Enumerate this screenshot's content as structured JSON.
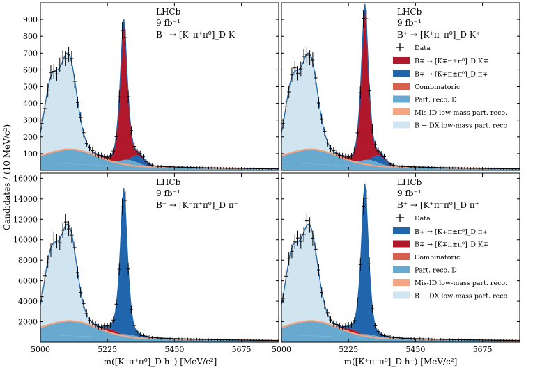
{
  "figure": {
    "ylabel": "Candidates / (10 MeV/c²)",
    "xlabel_left": "m([K⁻π⁺π⁰]_D h⁻) [MeV/c²]",
    "xlabel_right": "m([K⁺π⁻π⁰]_D h⁺) [MeV/c²]"
  },
  "colors": {
    "signal_dk": "#b2182b",
    "signal_dpi": "#2166ac",
    "combinatoric": "#d6604d",
    "part_reco_d": "#67a9cf",
    "misid": "#f4a582",
    "bdx": "#d1e5f0",
    "fit_line": "#2166ac"
  },
  "chart_data": [
    {
      "type": "area",
      "panel": "top-left",
      "experiment": "LHCb",
      "luminosity": "9 fb⁻¹",
      "decay": "B⁻ → [K⁻π⁺π⁰]_D K⁻",
      "xlim": [
        5000,
        5800
      ],
      "ylim": [
        0,
        1000
      ],
      "yticks": [
        100,
        200,
        300,
        400,
        500,
        600,
        700,
        800,
        900
      ],
      "xticks": [
        5000,
        5225,
        5450,
        5675
      ],
      "signal_peak": 840,
      "legend": []
    },
    {
      "type": "area",
      "panel": "top-right",
      "experiment": "LHCb",
      "luminosity": "9 fb⁻¹",
      "decay": "B⁺ → [K⁺π⁻π⁰]_D K⁺",
      "xlim": [
        5000,
        5800
      ],
      "ylim": [
        0,
        1000
      ],
      "yticks": [
        100,
        200,
        300,
        400,
        500,
        600,
        700,
        800,
        900
      ],
      "xticks": [
        5000,
        5225,
        5450,
        5675
      ],
      "signal_peak": 930,
      "legend": [
        {
          "label": "Data",
          "kind": "data"
        },
        {
          "label": "B∓ → [K∓π±π⁰]_D K∓",
          "color": "#b2182b"
        },
        {
          "label": "B∓ → [K∓π±π⁰]_D π∓",
          "color": "#2166ac"
        },
        {
          "label": "Combinatoric",
          "color": "#d6604d"
        },
        {
          "label": "Part. reco. D",
          "color": "#67a9cf"
        },
        {
          "label": "Mis-ID low-mass part. reco.",
          "color": "#f4a582"
        },
        {
          "label": "B → DX low-mass part. reco",
          "color": "#d1e5f0"
        }
      ]
    },
    {
      "type": "area",
      "panel": "bottom-left",
      "experiment": "LHCb",
      "luminosity": "9 fb⁻¹",
      "decay": "B⁻ → [K⁻π⁺π⁰]_D π⁻",
      "xlim": [
        5000,
        5800
      ],
      "ylim": [
        0,
        16500
      ],
      "yticks": [
        2000,
        4000,
        6000,
        8000,
        10000,
        12000,
        14000,
        16000
      ],
      "xticks": [
        5000,
        5225,
        5450,
        5675
      ],
      "signal_peak": 14200,
      "legend": []
    },
    {
      "type": "area",
      "panel": "bottom-right",
      "experiment": "LHCb",
      "luminosity": "9 fb⁻¹",
      "decay": "B⁺ → [K⁺π⁻π⁰]_D π⁺",
      "xlim": [
        5000,
        5800
      ],
      "ylim": [
        0,
        16500
      ],
      "yticks": [
        2000,
        4000,
        6000,
        8000,
        10000,
        12000,
        14000,
        16000
      ],
      "xticks": [
        5000,
        5225,
        5450,
        5675
      ],
      "signal_peak": 14700,
      "legend": [
        {
          "label": "Data",
          "kind": "data"
        },
        {
          "label": "B∓ → [K∓π±π⁰]_D π∓",
          "color": "#2166ac"
        },
        {
          "label": "B∓ → [K∓π±π⁰]_D K∓",
          "color": "#b2182b"
        },
        {
          "label": "Combinatoric",
          "color": "#d6604d"
        },
        {
          "label": "Part. reco. D",
          "color": "#67a9cf"
        },
        {
          "label": "Mis-ID low-mass part. reco.",
          "color": "#f4a582"
        },
        {
          "label": "B → DX low-mass part. reco",
          "color": "#d1e5f0"
        }
      ]
    }
  ]
}
